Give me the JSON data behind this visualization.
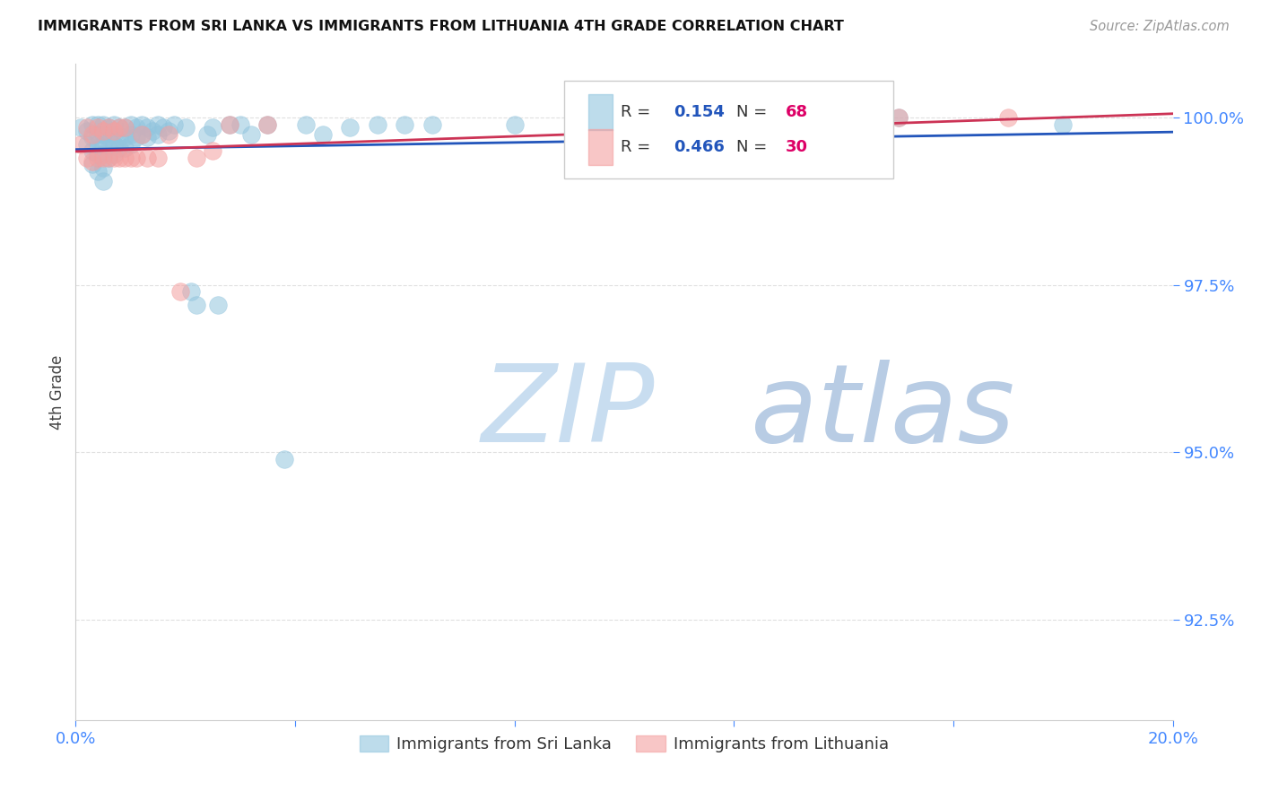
{
  "title": "IMMIGRANTS FROM SRI LANKA VS IMMIGRANTS FROM LITHUANIA 4TH GRADE CORRELATION CHART",
  "source_text": "Source: ZipAtlas.com",
  "ylabel": "4th Grade",
  "xlim": [
    0.0,
    0.2
  ],
  "ylim": [
    0.91,
    1.008
  ],
  "yticks": [
    0.925,
    0.95,
    0.975,
    1.0
  ],
  "ytick_labels": [
    "92.5%",
    "95.0%",
    "97.5%",
    "100.0%"
  ],
  "xtick_positions": [
    0.0,
    0.04,
    0.08,
    0.12,
    0.16,
    0.2
  ],
  "sri_lanka_color": "#92c5de",
  "lithuania_color": "#f4a0a0",
  "sri_lanka_R": 0.154,
  "sri_lanka_N": 68,
  "lithuania_R": 0.466,
  "lithuania_N": 30,
  "line_blue": "#2255bb",
  "line_pink": "#cc3355",
  "tick_color": "#4488ff",
  "sri_lanka_x": [
    0.001,
    0.002,
    0.002,
    0.003,
    0.003,
    0.003,
    0.003,
    0.004,
    0.004,
    0.004,
    0.004,
    0.004,
    0.005,
    0.005,
    0.005,
    0.005,
    0.005,
    0.005,
    0.006,
    0.006,
    0.006,
    0.006,
    0.007,
    0.007,
    0.007,
    0.007,
    0.008,
    0.008,
    0.008,
    0.009,
    0.009,
    0.009,
    0.01,
    0.01,
    0.01,
    0.011,
    0.011,
    0.012,
    0.012,
    0.013,
    0.013,
    0.014,
    0.015,
    0.015,
    0.016,
    0.017,
    0.018,
    0.02,
    0.021,
    0.022,
    0.024,
    0.025,
    0.026,
    0.028,
    0.03,
    0.032,
    0.035,
    0.038,
    0.042,
    0.045,
    0.05,
    0.055,
    0.06,
    0.065,
    0.08,
    0.1,
    0.15,
    0.18
  ],
  "sri_lanka_y": [
    0.9985,
    0.998,
    0.996,
    0.999,
    0.997,
    0.995,
    0.993,
    0.999,
    0.9975,
    0.996,
    0.9945,
    0.992,
    0.999,
    0.9975,
    0.996,
    0.9945,
    0.9925,
    0.9905,
    0.9985,
    0.997,
    0.9955,
    0.994,
    0.999,
    0.9975,
    0.996,
    0.9945,
    0.9985,
    0.997,
    0.9955,
    0.9985,
    0.997,
    0.9955,
    0.999,
    0.9975,
    0.996,
    0.9985,
    0.997,
    0.999,
    0.9975,
    0.9985,
    0.997,
    0.998,
    0.999,
    0.9975,
    0.9985,
    0.998,
    0.999,
    0.9985,
    0.974,
    0.972,
    0.9975,
    0.9985,
    0.972,
    0.999,
    0.999,
    0.9975,
    0.999,
    0.949,
    0.999,
    0.9975,
    0.9985,
    0.999,
    0.999,
    0.999,
    0.999,
    1.0,
    1.0,
    0.999
  ],
  "lithuania_x": [
    0.001,
    0.002,
    0.002,
    0.003,
    0.003,
    0.004,
    0.004,
    0.005,
    0.005,
    0.006,
    0.006,
    0.007,
    0.007,
    0.008,
    0.008,
    0.009,
    0.009,
    0.01,
    0.011,
    0.012,
    0.013,
    0.015,
    0.017,
    0.019,
    0.022,
    0.025,
    0.028,
    0.035,
    0.15,
    0.17
  ],
  "lithuania_y": [
    0.996,
    0.9985,
    0.994,
    0.9975,
    0.9935,
    0.9985,
    0.994,
    0.998,
    0.994,
    0.9985,
    0.994,
    0.998,
    0.994,
    0.9985,
    0.994,
    0.9985,
    0.994,
    0.994,
    0.994,
    0.9975,
    0.994,
    0.994,
    0.9975,
    0.974,
    0.994,
    0.995,
    0.999,
    0.999,
    1.0,
    1.0
  ],
  "watermark_zip_color": "#c8ddf0",
  "watermark_atlas_color": "#b8cce4",
  "background_color": "#ffffff",
  "grid_color": "#e0e0e0"
}
